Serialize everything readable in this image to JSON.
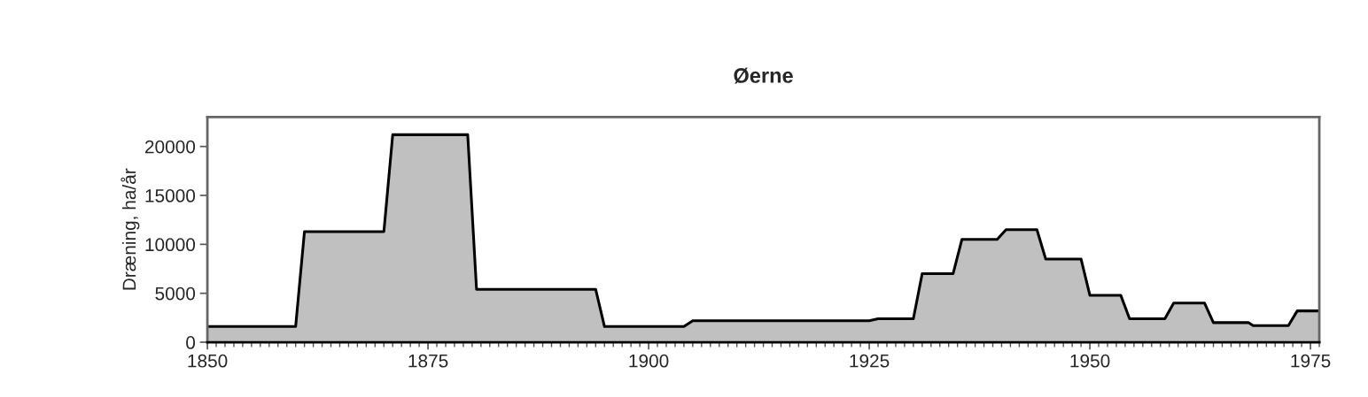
{
  "chart_data": {
    "type": "area",
    "title": "Øerne",
    "ylabel": "Dræning, ha/år",
    "x": [
      1850,
      1860,
      1861,
      1870,
      1871,
      1879.5,
      1880.5,
      1894,
      1895,
      1904,
      1905,
      1925,
      1926,
      1930,
      1931,
      1934.5,
      1935.5,
      1939.5,
      1940.5,
      1944,
      1945,
      1949,
      1950,
      1953.5,
      1954.5,
      1958.5,
      1959.5,
      1963,
      1964,
      1968,
      1968.5,
      1972.5,
      1973.5,
      1976
    ],
    "values": [
      1600,
      1600,
      11300,
      11300,
      21200,
      21200,
      5400,
      5400,
      1600,
      1600,
      2200,
      2200,
      2400,
      2400,
      7000,
      7000,
      10500,
      10500,
      11500,
      11500,
      8500,
      8500,
      4800,
      4800,
      2400,
      2400,
      4000,
      4000,
      2000,
      2000,
      1700,
      1700,
      3200,
      3200
    ],
    "color": "#c0c0c0",
    "xlim": [
      1850,
      1976
    ],
    "xticks": [
      1850,
      1875,
      1900,
      1925,
      1950,
      1975
    ],
    "ylim": [
      0,
      23000
    ],
    "yticks": [
      0,
      5000,
      10000,
      15000,
      20000
    ]
  }
}
